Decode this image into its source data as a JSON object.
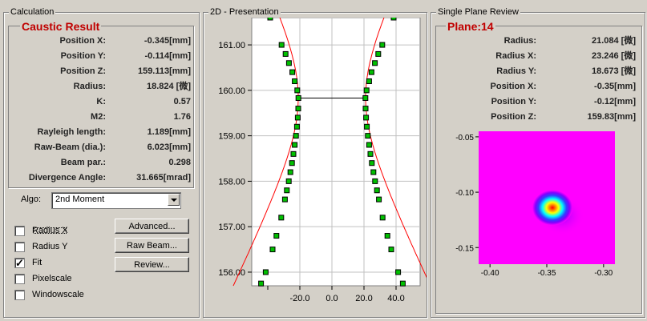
{
  "calc": {
    "group_title": "Calculation",
    "section_title": "Caustic Result",
    "rows": [
      {
        "label": "Position X:",
        "value": "-0.345[mm]"
      },
      {
        "label": "Position Y:",
        "value": "-0.114[mm]"
      },
      {
        "label": "Position Z:",
        "value": "159.113[mm]"
      },
      {
        "label": "Radius:",
        "value": "18.824 [微]"
      },
      {
        "label": "K:",
        "value": "0.57"
      },
      {
        "label": "M2:",
        "value": "1.76"
      },
      {
        "label": "Rayleigh length:",
        "value": "1.189[mm]"
      },
      {
        "label": "Raw-Beam (dia.):",
        "value": "6.023[mm]"
      },
      {
        "label": "Beam par.:",
        "value": "0.298"
      },
      {
        "label": "Divergence Angle:",
        "value": "31.665[mrad]"
      }
    ],
    "algo_label": "Algo:",
    "algo_value": "2nd Moment",
    "checkboxes": [
      {
        "label": "Radius X",
        "checked": false
      },
      {
        "label": "Radius Y",
        "checked": false
      },
      {
        "label": "Fit",
        "checked": true
      },
      {
        "label": "Pixelscale",
        "checked": false
      },
      {
        "label": "Windowscale",
        "checked": false
      }
    ],
    "buttons": [
      "Advanced...",
      "Raw Beam...",
      "Review..."
    ]
  },
  "presentation": {
    "group_title": "2D - Presentation"
  },
  "chart_data": {
    "type": "scatter",
    "title": "",
    "xlabel": "",
    "ylabel": "",
    "xlim": [
      -50,
      55
    ],
    "ylim": [
      155.7,
      161.6
    ],
    "x_ticks": [
      -20,
      0,
      20,
      40
    ],
    "x_tick_labels": [
      "-20.0",
      "0.0",
      "20.0",
      "40.0"
    ],
    "y_ticks": [
      156,
      157,
      158,
      159,
      160,
      161
    ],
    "y_tick_labels": [
      "156.00",
      "157.00",
      "158.00",
      "159.00",
      "160.00",
      "161.00"
    ],
    "waist_z": 159.83,
    "waist_radius": 21.0,
    "series": [
      {
        "values": [
          [
            -38.5,
            161.6
          ],
          [
            -31.4,
            161.0
          ],
          [
            -28.9,
            160.8
          ],
          [
            -26.8,
            160.6
          ],
          [
            -24.7,
            160.4
          ],
          [
            -23.2,
            160.2
          ],
          [
            -21.6,
            160.0
          ],
          [
            -20.9,
            159.83
          ],
          [
            -21.0,
            159.6
          ],
          [
            -21.3,
            159.4
          ],
          [
            -21.8,
            159.2
          ],
          [
            -22.4,
            159.0
          ],
          [
            -23.2,
            158.8
          ],
          [
            -24.0,
            158.6
          ],
          [
            -24.9,
            158.4
          ],
          [
            -25.9,
            158.2
          ],
          [
            -26.9,
            158.0
          ],
          [
            -28.1,
            157.8
          ],
          [
            -29.3,
            157.6
          ],
          [
            -31.6,
            157.2
          ],
          [
            -34.6,
            156.8
          ],
          [
            -37.0,
            156.5
          ],
          [
            -41.3,
            156.0
          ],
          [
            -44.2,
            155.75
          ]
        ]
      },
      {
        "values": [
          [
            38.5,
            161.6
          ],
          [
            31.4,
            161.0
          ],
          [
            28.9,
            160.8
          ],
          [
            26.8,
            160.6
          ],
          [
            24.7,
            160.4
          ],
          [
            23.2,
            160.2
          ],
          [
            21.6,
            160.0
          ],
          [
            20.9,
            159.83
          ],
          [
            21.0,
            159.6
          ],
          [
            21.3,
            159.4
          ],
          [
            21.8,
            159.2
          ],
          [
            22.4,
            159.0
          ],
          [
            23.2,
            158.8
          ],
          [
            24.0,
            158.6
          ],
          [
            24.9,
            158.4
          ],
          [
            25.9,
            158.2
          ],
          [
            26.9,
            158.0
          ],
          [
            28.1,
            157.8
          ],
          [
            29.3,
            157.6
          ],
          [
            31.6,
            157.2
          ],
          [
            34.6,
            156.8
          ],
          [
            37.0,
            156.5
          ],
          [
            41.3,
            156.0
          ],
          [
            44.2,
            155.75
          ]
        ]
      }
    ],
    "colors": {
      "marker": "#00c000",
      "fit": "#ff0000",
      "waist": "#000000",
      "grid": "#c0c0c0"
    }
  },
  "plane": {
    "group_title": "Single Plane Review",
    "section_title": "Plane:14",
    "rows": [
      {
        "label": "Radius:",
        "value": "21.084 [微]"
      },
      {
        "label": "Radius X:",
        "value": "23.246 [微]"
      },
      {
        "label": "Radius Y:",
        "value": "18.673 [微]"
      },
      {
        "label": "Position X:",
        "value": "-0.35[mm]"
      },
      {
        "label": "Position Y:",
        "value": "-0.12[mm]"
      },
      {
        "label": "Position Z:",
        "value": "159.83[mm]"
      }
    ],
    "heatmap": {
      "x_ticks": [
        "-0.40",
        "-0.35",
        "-0.30"
      ],
      "y_ticks": [
        "-0.05",
        "-0.10",
        "-0.15"
      ],
      "xlim": [
        -0.41,
        -0.29
      ],
      "ylim": [
        -0.165,
        -0.045
      ],
      "center_x": -0.345,
      "center_y": -0.114,
      "colors": {
        "background": "#ff00ff",
        "peak": "#ff0000"
      }
    }
  }
}
